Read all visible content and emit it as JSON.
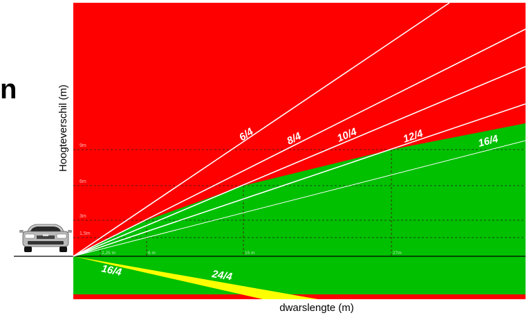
{
  "partial_text": "n",
  "axes": {
    "xlabel": "dwarslengte (m)",
    "ylabel": "Hoogteverschil (m)"
  },
  "height_ticks": [
    {
      "label": "1,5m",
      "value": 1.5
    },
    {
      "label": "3m",
      "value": 3
    },
    {
      "label": "6m",
      "value": 6
    },
    {
      "label": "9m",
      "value": 9
    }
  ],
  "distance_ticks": [
    {
      "label": "2,25 m",
      "value": 2.25
    },
    {
      "label": "6 m",
      "value": 6
    },
    {
      "label": "15 m",
      "value": 15
    },
    {
      "label": "27m",
      "value": 27
    }
  ],
  "slopes_up": [
    {
      "label": "6/4"
    },
    {
      "label": "8/4"
    },
    {
      "label": "10/4"
    },
    {
      "label": "12/4"
    },
    {
      "label": "16/4"
    }
  ],
  "slopes_down": [
    {
      "label": "16/4"
    },
    {
      "label": "24/4"
    }
  ],
  "zone_colors": {
    "danger": "#ff0000",
    "safe": "#00c000",
    "warning": "#ffff00",
    "lines": "#ffffff"
  },
  "icons": {
    "vehicle": "car-front-icon"
  }
}
